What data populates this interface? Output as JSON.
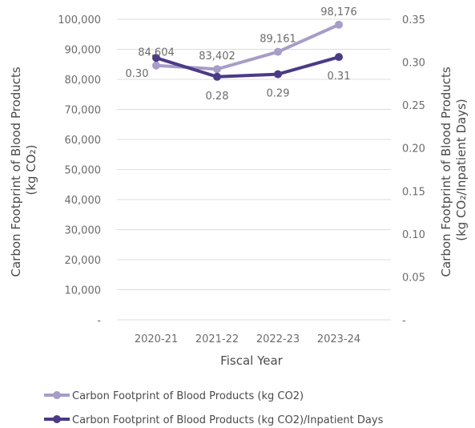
{
  "chart_data": {
    "type": "line",
    "categories": [
      "2020-21",
      "2021-22",
      "2022-23",
      "2023-24"
    ],
    "xlabel": "Fiscal Year",
    "ylabel_left": [
      "Carbon Footprint of Blood Products",
      "(kg CO₂)"
    ],
    "ylabel_right": [
      "Carbon Footprint of Blood Products",
      "(kg CO₂/Inpatient Days)"
    ],
    "ylim_left": [
      0,
      100000
    ],
    "ylim_right": [
      0,
      0.35
    ],
    "left_ticks": [
      "-",
      "10,000",
      "20,000",
      "30,000",
      "40,000",
      "50,000",
      "60,000",
      "70,000",
      "80,000",
      "90,000",
      "100,000"
    ],
    "right_ticks": [
      "-",
      "0.05",
      "0.10",
      "0.15",
      "0.20",
      "0.25",
      "0.30",
      "0.35"
    ],
    "grid": true,
    "legend_position": "bottom",
    "series": [
      {
        "name": "Carbon Footprint of Blood Products (kg CO2)",
        "axis": "left",
        "color": "#a89cc8",
        "values": [
          84604,
          83402,
          89161,
          98176
        ],
        "labels": [
          "84,604",
          "83,402",
          "89,161",
          "98,176"
        ]
      },
      {
        "name": "Carbon Footprint of Blood Products (kg CO2)/Inpatient Days",
        "axis": "right",
        "color": "#4b3b85",
        "values": [
          0.305,
          0.283,
          0.286,
          0.306
        ],
        "labels": [
          "0.30",
          "0.28",
          "0.29",
          "0.31"
        ]
      }
    ]
  }
}
